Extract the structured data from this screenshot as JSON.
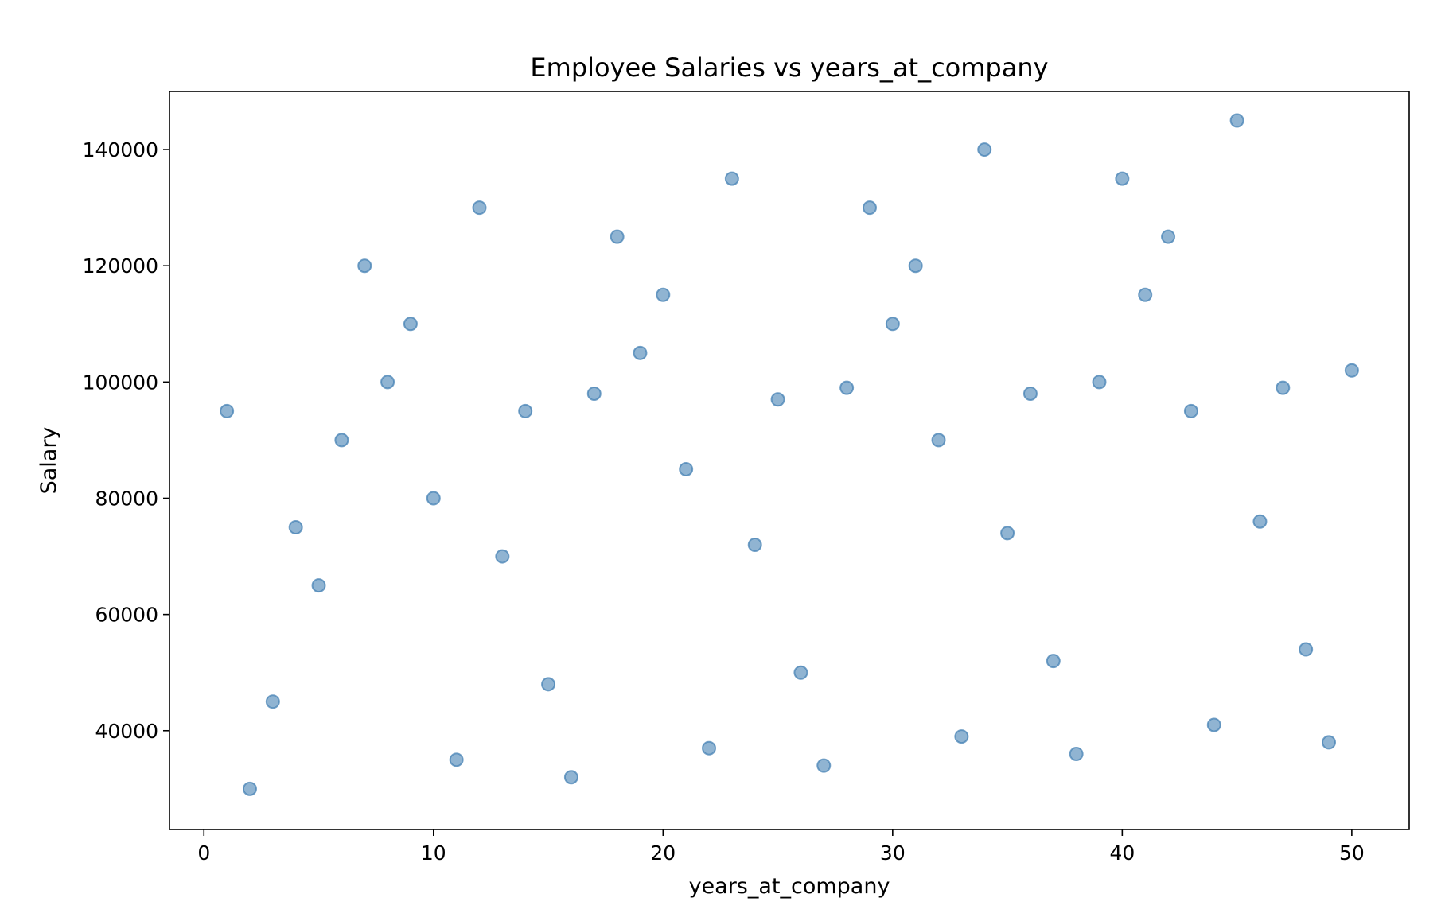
{
  "chart_data": {
    "type": "scatter",
    "title": "Employee Salaries vs years_at_company",
    "xlabel": "years_at_company",
    "ylabel": "Salary",
    "xlim": [
      -1.5,
      52.5
    ],
    "ylim": [
      23000,
      150000
    ],
    "xticks": [
      0,
      10,
      20,
      30,
      40,
      50
    ],
    "xtick_labels": [
      "0",
      "10",
      "20",
      "30",
      "40",
      "50"
    ],
    "yticks": [
      40000,
      60000,
      80000,
      100000,
      120000,
      140000
    ],
    "ytick_labels": [
      "40000",
      "60000",
      "80000",
      "100000",
      "120000",
      "140000"
    ],
    "grid": false,
    "color": "#4682b4",
    "points": [
      {
        "x": 1,
        "y": 95000
      },
      {
        "x": 2,
        "y": 30000
      },
      {
        "x": 3,
        "y": 45000
      },
      {
        "x": 4,
        "y": 75000
      },
      {
        "x": 5,
        "y": 65000
      },
      {
        "x": 6,
        "y": 90000
      },
      {
        "x": 7,
        "y": 120000
      },
      {
        "x": 8,
        "y": 100000
      },
      {
        "x": 9,
        "y": 110000
      },
      {
        "x": 10,
        "y": 80000
      },
      {
        "x": 11,
        "y": 35000
      },
      {
        "x": 12,
        "y": 130000
      },
      {
        "x": 13,
        "y": 70000
      },
      {
        "x": 14,
        "y": 95000
      },
      {
        "x": 15,
        "y": 48000
      },
      {
        "x": 16,
        "y": 32000
      },
      {
        "x": 17,
        "y": 98000
      },
      {
        "x": 18,
        "y": 125000
      },
      {
        "x": 19,
        "y": 105000
      },
      {
        "x": 20,
        "y": 115000
      },
      {
        "x": 21,
        "y": 85000
      },
      {
        "x": 22,
        "y": 37000
      },
      {
        "x": 23,
        "y": 135000
      },
      {
        "x": 24,
        "y": 72000
      },
      {
        "x": 25,
        "y": 97000
      },
      {
        "x": 26,
        "y": 50000
      },
      {
        "x": 27,
        "y": 34000
      },
      {
        "x": 28,
        "y": 99000
      },
      {
        "x": 29,
        "y": 130000
      },
      {
        "x": 30,
        "y": 110000
      },
      {
        "x": 31,
        "y": 120000
      },
      {
        "x": 32,
        "y": 90000
      },
      {
        "x": 33,
        "y": 39000
      },
      {
        "x": 34,
        "y": 140000
      },
      {
        "x": 35,
        "y": 74000
      },
      {
        "x": 36,
        "y": 98000
      },
      {
        "x": 37,
        "y": 52000
      },
      {
        "x": 38,
        "y": 36000
      },
      {
        "x": 39,
        "y": 100000
      },
      {
        "x": 40,
        "y": 135000
      },
      {
        "x": 41,
        "y": 115000
      },
      {
        "x": 42,
        "y": 125000
      },
      {
        "x": 43,
        "y": 95000
      },
      {
        "x": 44,
        "y": 41000
      },
      {
        "x": 45,
        "y": 145000
      },
      {
        "x": 46,
        "y": 76000
      },
      {
        "x": 47,
        "y": 99000
      },
      {
        "x": 48,
        "y": 54000
      },
      {
        "x": 49,
        "y": 38000
      },
      {
        "x": 50,
        "y": 102000
      }
    ]
  }
}
